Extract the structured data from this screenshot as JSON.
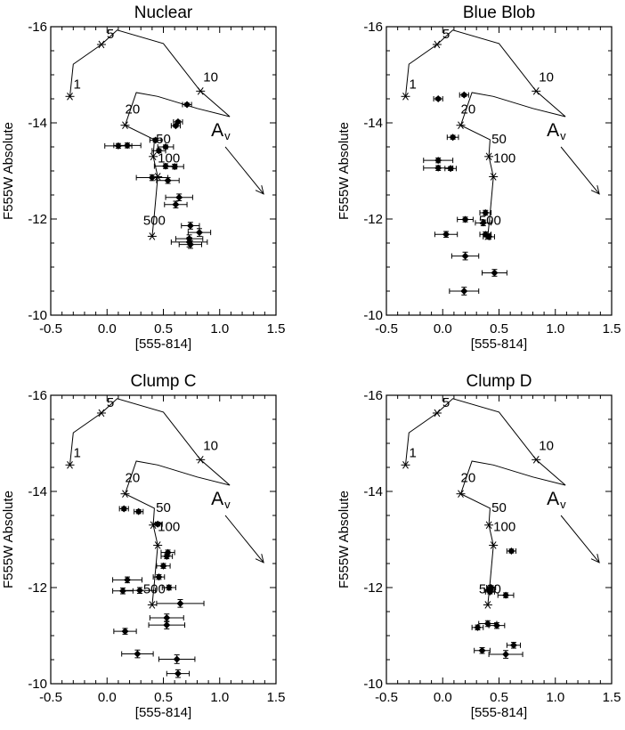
{
  "chart_data": [
    {
      "type": "scatter",
      "title": "Nuclear",
      "xlabel": "[555-814]",
      "ylabel": "F555W Absolute",
      "xlim": [
        -0.5,
        1.5
      ],
      "ylim": [
        -10,
        -16
      ],
      "xticks": [
        "-0.5",
        "0.0",
        "0.5",
        "1.0",
        "1.5"
      ],
      "yticks": [
        "-10",
        "-12",
        "-14",
        "-16"
      ],
      "reddening_label": "A",
      "reddening_subscript": "v",
      "points": [
        {
          "x": 0.71,
          "y": -14.38,
          "xerr": 0.04,
          "yerr": 0.03
        },
        {
          "x": 0.63,
          "y": -14.02,
          "xerr": 0.04,
          "yerr": 0.03
        },
        {
          "x": 0.61,
          "y": -13.94,
          "xerr": 0.04,
          "yerr": 0.03
        },
        {
          "x": 0.43,
          "y": -13.64,
          "xerr": 0.05,
          "yerr": 0.04
        },
        {
          "x": 0.1,
          "y": -13.52,
          "xerr": 0.12,
          "yerr": 0.05
        },
        {
          "x": 0.18,
          "y": -13.53,
          "xerr": 0.12,
          "yerr": 0.05
        },
        {
          "x": 0.52,
          "y": -13.5,
          "xerr": 0.07,
          "yerr": 0.04
        },
        {
          "x": 0.46,
          "y": -13.42,
          "xerr": 0.06,
          "yerr": 0.04
        },
        {
          "x": 0.52,
          "y": -13.1,
          "xerr": 0.1,
          "yerr": 0.05
        },
        {
          "x": 0.6,
          "y": -13.09,
          "xerr": 0.08,
          "yerr": 0.05
        },
        {
          "x": 0.4,
          "y": -12.86,
          "xerr": 0.14,
          "yerr": 0.06
        },
        {
          "x": 0.54,
          "y": -12.8,
          "xerr": 0.1,
          "yerr": 0.06
        },
        {
          "x": 0.64,
          "y": -12.45,
          "xerr": 0.12,
          "yerr": 0.07
        },
        {
          "x": 0.61,
          "y": -12.3,
          "xerr": 0.1,
          "yerr": 0.07
        },
        {
          "x": 0.74,
          "y": -11.86,
          "xerr": 0.08,
          "yerr": 0.07
        },
        {
          "x": 0.82,
          "y": -11.72,
          "xerr": 0.1,
          "yerr": 0.08
        },
        {
          "x": 0.73,
          "y": -11.59,
          "xerr": 0.12,
          "yerr": 0.08
        },
        {
          "x": 0.73,
          "y": -11.52,
          "xerr": 0.16,
          "yerr": 0.1
        },
        {
          "x": 0.74,
          "y": -11.47,
          "xerr": 0.1,
          "yerr": 0.08
        }
      ]
    },
    {
      "type": "scatter",
      "title": "Blue Blob",
      "xlabel": "[555-814]",
      "ylabel": "F555W Absolute",
      "xlim": [
        -0.5,
        1.5
      ],
      "ylim": [
        -10,
        -16
      ],
      "xticks": [
        "-0.5",
        "0.0",
        "0.5",
        "1.0",
        "1.5"
      ],
      "yticks": [
        "-10",
        "-12",
        "-14",
        "-16"
      ],
      "reddening_label": "A",
      "reddening_subscript": "v",
      "points": [
        {
          "x": 0.19,
          "y": -14.58,
          "xerr": 0.04,
          "yerr": 0.03
        },
        {
          "x": -0.04,
          "y": -14.5,
          "xerr": 0.04,
          "yerr": 0.03
        },
        {
          "x": 0.09,
          "y": -13.7,
          "xerr": 0.05,
          "yerr": 0.04
        },
        {
          "x": -0.04,
          "y": -13.22,
          "xerr": 0.13,
          "yerr": 0.05
        },
        {
          "x": -0.04,
          "y": -13.06,
          "xerr": 0.13,
          "yerr": 0.05
        },
        {
          "x": 0.07,
          "y": -13.05,
          "xerr": 0.05,
          "yerr": 0.04
        },
        {
          "x": 0.38,
          "y": -12.13,
          "xerr": 0.05,
          "yerr": 0.05
        },
        {
          "x": 0.2,
          "y": -11.99,
          "xerr": 0.07,
          "yerr": 0.05
        },
        {
          "x": 0.36,
          "y": -11.92,
          "xerr": 0.07,
          "yerr": 0.06
        },
        {
          "x": 0.03,
          "y": -11.68,
          "xerr": 0.1,
          "yerr": 0.06
        },
        {
          "x": 0.38,
          "y": -11.68,
          "xerr": 0.05,
          "yerr": 0.05
        },
        {
          "x": 0.41,
          "y": -11.63,
          "xerr": 0.05,
          "yerr": 0.05
        },
        {
          "x": 0.2,
          "y": -11.23,
          "xerr": 0.12,
          "yerr": 0.08
        },
        {
          "x": 0.46,
          "y": -10.88,
          "xerr": 0.11,
          "yerr": 0.07
        },
        {
          "x": 0.19,
          "y": -10.5,
          "xerr": 0.13,
          "yerr": 0.08
        }
      ]
    },
    {
      "type": "scatter",
      "title": "Clump C",
      "xlabel": "[555-814]",
      "ylabel": "F555W Absolute",
      "xlim": [
        -0.5,
        1.5
      ],
      "ylim": [
        -10,
        -16
      ],
      "xticks": [
        "-0.5",
        "0.0",
        "0.5",
        "1.0",
        "1.5"
      ],
      "yticks": [
        "-10",
        "-12",
        "-14",
        "-16"
      ],
      "reddening_label": "A",
      "reddening_subscript": "v",
      "points": [
        {
          "x": 0.15,
          "y": -13.64,
          "xerr": 0.04,
          "yerr": 0.04
        },
        {
          "x": 0.28,
          "y": -13.58,
          "xerr": 0.04,
          "yerr": 0.04
        },
        {
          "x": 0.45,
          "y": -13.32,
          "xerr": 0.04,
          "yerr": 0.04
        },
        {
          "x": 0.54,
          "y": -12.73,
          "xerr": 0.06,
          "yerr": 0.05
        },
        {
          "x": 0.53,
          "y": -12.65,
          "xerr": 0.05,
          "yerr": 0.05
        },
        {
          "x": 0.5,
          "y": -12.45,
          "xerr": 0.06,
          "yerr": 0.05
        },
        {
          "x": 0.46,
          "y": -12.22,
          "xerr": 0.05,
          "yerr": 0.05
        },
        {
          "x": 0.18,
          "y": -12.16,
          "xerr": 0.13,
          "yerr": 0.06
        },
        {
          "x": 0.55,
          "y": -12.0,
          "xerr": 0.06,
          "yerr": 0.05
        },
        {
          "x": 0.14,
          "y": -11.93,
          "xerr": 0.09,
          "yerr": 0.06
        },
        {
          "x": 0.29,
          "y": -11.94,
          "xerr": 0.14,
          "yerr": 0.06
        },
        {
          "x": 0.65,
          "y": -11.67,
          "xerr": 0.21,
          "yerr": 0.08
        },
        {
          "x": 0.53,
          "y": -11.37,
          "xerr": 0.15,
          "yerr": 0.08
        },
        {
          "x": 0.53,
          "y": -11.22,
          "xerr": 0.16,
          "yerr": 0.08
        },
        {
          "x": 0.16,
          "y": -11.09,
          "xerr": 0.1,
          "yerr": 0.06
        },
        {
          "x": 0.27,
          "y": -10.62,
          "xerr": 0.14,
          "yerr": 0.08
        },
        {
          "x": 0.62,
          "y": -10.51,
          "xerr": 0.16,
          "yerr": 0.09
        },
        {
          "x": 0.63,
          "y": -10.21,
          "xerr": 0.1,
          "yerr": 0.08
        }
      ]
    },
    {
      "type": "scatter",
      "title": "Clump D",
      "xlabel": "[555-814]",
      "ylabel": "F555W Absolute",
      "xlim": [
        -0.5,
        1.5
      ],
      "ylim": [
        -10,
        -16
      ],
      "xticks": [
        "-0.5",
        "0.0",
        "0.5",
        "1.0",
        "1.5"
      ],
      "yticks": [
        "-10",
        "-12",
        "-14",
        "-16"
      ],
      "reddening_label": "A",
      "reddening_subscript": "v",
      "points": [
        {
          "x": 0.61,
          "y": -12.76,
          "xerr": 0.04,
          "yerr": 0.04
        },
        {
          "x": 0.43,
          "y": -12.0,
          "xerr": 0.04,
          "yerr": 0.04
        },
        {
          "x": 0.41,
          "y": -11.95,
          "xerr": 0.04,
          "yerr": 0.04
        },
        {
          "x": 0.42,
          "y": -11.91,
          "xerr": 0.04,
          "yerr": 0.04
        },
        {
          "x": 0.56,
          "y": -11.84,
          "xerr": 0.07,
          "yerr": 0.05
        },
        {
          "x": 0.4,
          "y": -11.25,
          "xerr": 0.08,
          "yerr": 0.06
        },
        {
          "x": 0.48,
          "y": -11.21,
          "xerr": 0.07,
          "yerr": 0.06
        },
        {
          "x": 0.31,
          "y": -11.17,
          "xerr": 0.05,
          "yerr": 0.05
        },
        {
          "x": 0.63,
          "y": -10.8,
          "xerr": 0.06,
          "yerr": 0.06
        },
        {
          "x": 0.35,
          "y": -10.69,
          "xerr": 0.07,
          "yerr": 0.06
        },
        {
          "x": 0.56,
          "y": -10.61,
          "xerr": 0.15,
          "yerr": 0.08
        }
      ]
    }
  ],
  "model_track": {
    "line": [
      {
        "x": -0.33,
        "y": -14.55
      },
      {
        "x": -0.3,
        "y": -15.22
      },
      {
        "x": -0.05,
        "y": -15.63
      },
      {
        "x": 0.09,
        "y": -15.93
      },
      {
        "x": 0.5,
        "y": -15.65
      },
      {
        "x": 0.83,
        "y": -14.66
      },
      {
        "x": 1.09,
        "y": -14.13
      },
      {
        "x": 0.8,
        "y": -14.3
      },
      {
        "x": 0.45,
        "y": -14.55
      },
      {
        "x": 0.26,
        "y": -14.63
      },
      {
        "x": 0.16,
        "y": -13.95
      },
      {
        "x": 0.42,
        "y": -13.65
      },
      {
        "x": 0.41,
        "y": -13.3
      },
      {
        "x": 0.45,
        "y": -12.88
      },
      {
        "x": 0.42,
        "y": -12.1
      },
      {
        "x": 0.4,
        "y": -11.64
      }
    ],
    "age_markers": [
      {
        "label": "1",
        "x": -0.33,
        "y": -14.55
      },
      {
        "label": "5",
        "x": -0.05,
        "y": -15.63
      },
      {
        "label": "10",
        "x": 0.83,
        "y": -14.66
      },
      {
        "label": "20",
        "x": 0.16,
        "y": -13.95
      },
      {
        "label": "50",
        "x": 0.41,
        "y": -13.3
      },
      {
        "label": "100",
        "x": 0.45,
        "y": -12.88
      },
      {
        "label": "500",
        "x": 0.4,
        "y": -11.64
      }
    ],
    "reddening_vector": {
      "x0": 1.05,
      "y0": -13.5,
      "x1": 1.39,
      "y1": -12.52
    }
  }
}
